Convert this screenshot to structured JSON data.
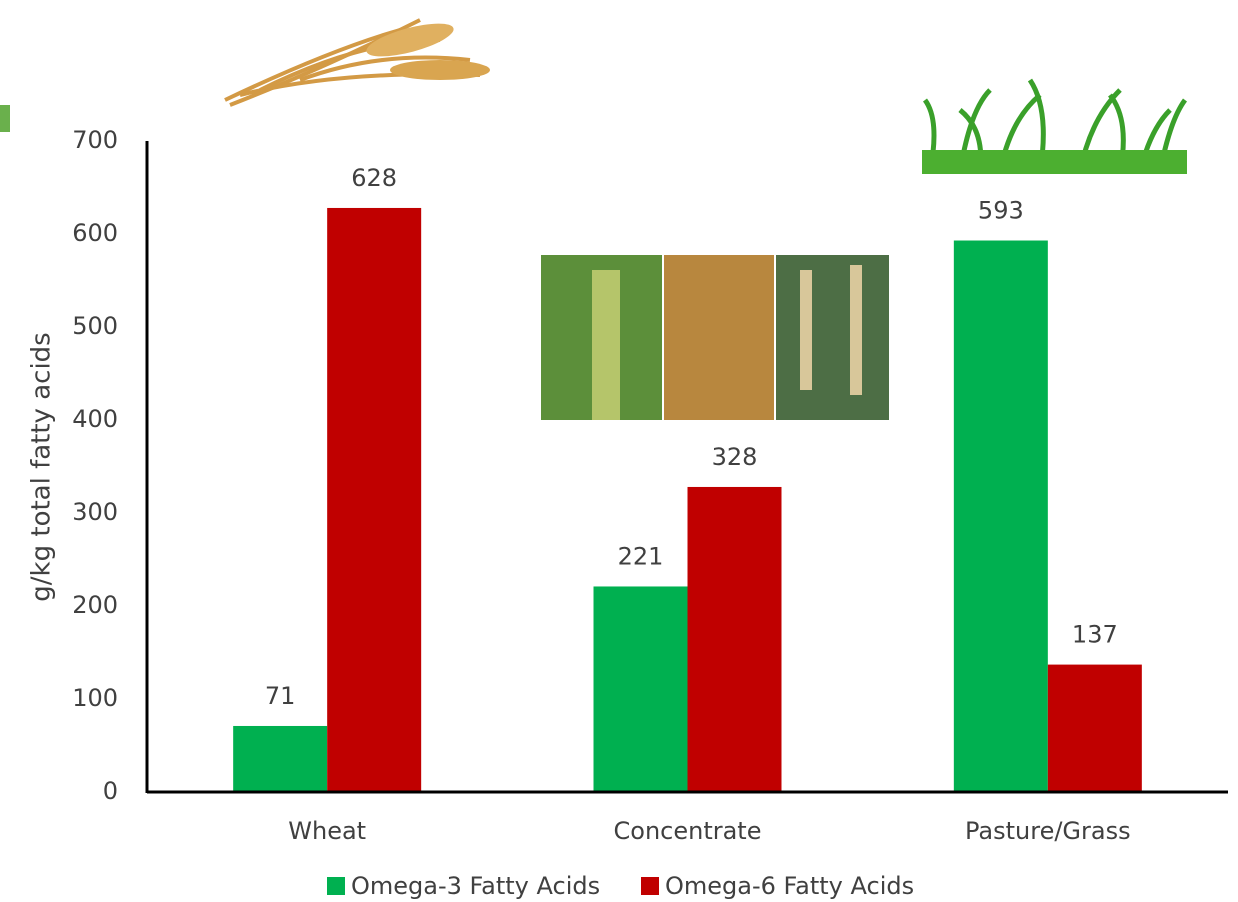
{
  "chart_data": {
    "type": "bar",
    "y_label": "g/kg total fatty acids",
    "categories": [
      "Wheat",
      "Concentrate",
      "Pasture/Grass"
    ],
    "series": [
      {
        "name": "Omega-3 Fatty Acids",
        "color": "#00b050",
        "values": [
          71,
          221,
          593
        ]
      },
      {
        "name": "Omega-6 Fatty Acids",
        "color": "#c00000",
        "values": [
          628,
          328,
          137
        ]
      }
    ],
    "ylim": [
      0,
      700
    ],
    "yticks": [
      0,
      100,
      200,
      300,
      400,
      500,
      600,
      700
    ],
    "grid": false,
    "legend": "bottom"
  }
}
